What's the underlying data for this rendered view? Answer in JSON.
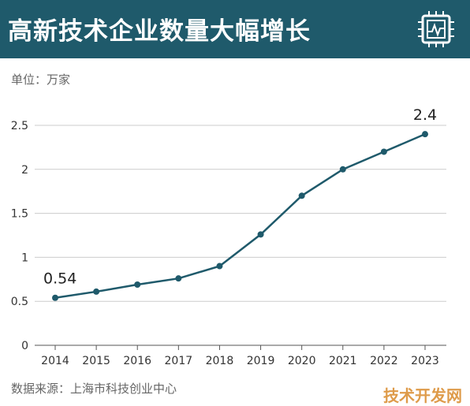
{
  "header": {
    "title": "高新技术企业数量大幅增长",
    "background_color": "#1f5a6b",
    "logo_icon": "chip-chart-icon"
  },
  "unit_label": "单位：万家",
  "source_label": "数据来源：上海市科技创业中心",
  "watermark": "技术开发网",
  "chart_data": {
    "type": "line",
    "title": "高新技术企业数量大幅增长",
    "xlabel": "",
    "ylabel": "单位：万家",
    "x": [
      "2014",
      "2015",
      "2016",
      "2017",
      "2018",
      "2019",
      "2020",
      "2021",
      "2022",
      "2023"
    ],
    "series": [
      {
        "values": [
          0.54,
          0.61,
          0.69,
          0.76,
          0.9,
          1.26,
          1.7,
          2.0,
          2.2,
          2.4
        ],
        "color": "#1f5a6b"
      }
    ],
    "ylim": [
      0,
      2.5
    ],
    "yticks": [
      "0",
      "0.5",
      "1",
      "1.5",
      "2",
      "2.5"
    ],
    "data_labels": [
      {
        "x": "2014",
        "text": "0.54"
      },
      {
        "x": "2023",
        "text": "2.4"
      }
    ],
    "grid": "horizontal",
    "line_color": "#1f5a6b",
    "grid_color": "#cccccc"
  }
}
